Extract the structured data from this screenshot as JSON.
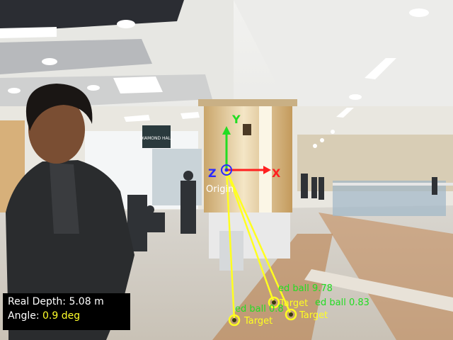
{
  "axes": {
    "x_label": "X",
    "y_label": "Y",
    "z_label": "Z",
    "origin_label": "Origin",
    "x_color": "#ff2020",
    "y_color": "#22dd22",
    "z_color": "#2a2aff"
  },
  "signage": {
    "hall_sign": "DIAMOND HALL"
  },
  "targets": [
    {
      "label": "Target",
      "detection": "ed ball 9.78"
    },
    {
      "label": "Target",
      "detection": "ed ball 0.83"
    },
    {
      "label": "Target",
      "detection": "ed ball 0.8"
    }
  ],
  "colors": {
    "track_line": "#ffff20",
    "detection_text": "#22dd22",
    "target_text": "#ffff20"
  },
  "info": {
    "depth_label": "Real Depth:",
    "depth_value": "5.08 m",
    "angle_label": "Angle:",
    "angle_value": "0.9 deg"
  }
}
